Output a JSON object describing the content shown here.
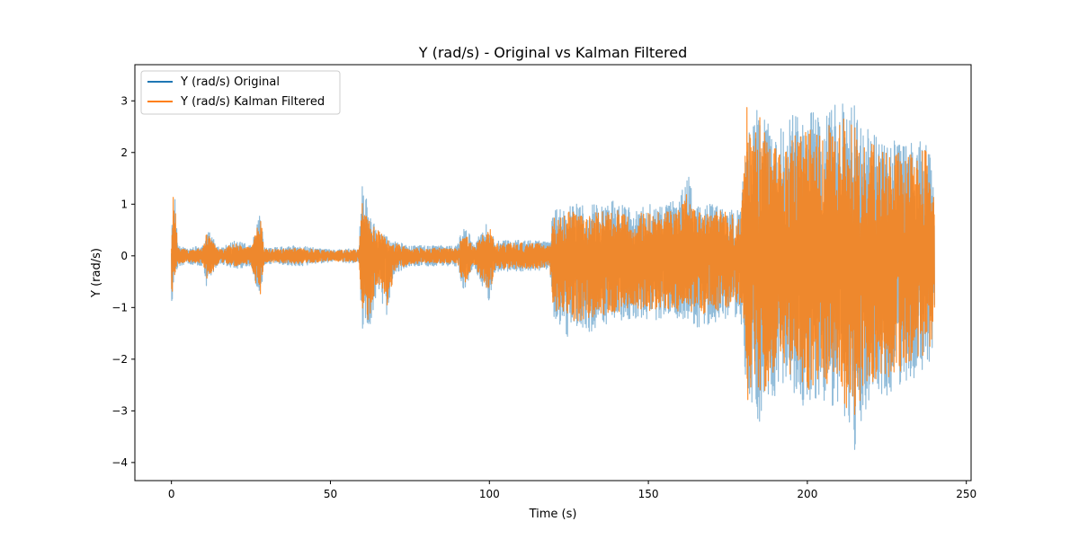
{
  "chart_data": {
    "type": "line",
    "title": "Y (rad/s) - Original vs Kalman Filtered",
    "xlabel": "Time (s)",
    "ylabel": "Y (rad/s)",
    "xlim": [
      -11.5,
      251.5
    ],
    "ylim": [
      -4.35,
      3.7
    ],
    "xticks": [
      0,
      50,
      100,
      150,
      200,
      250
    ],
    "yticks": [
      -4,
      -3,
      -2,
      -1,
      0,
      1,
      2,
      3
    ],
    "xtick_labels": [
      "0",
      "50",
      "100",
      "150",
      "200",
      "250"
    ],
    "ytick_labels": [
      "−4",
      "−3",
      "−2",
      "−1",
      "0",
      "1",
      "2",
      "3"
    ],
    "grid": false,
    "legend_position": "upper-left",
    "series": [
      {
        "name": "Y (rad/s) Original",
        "color": "#1f77b4",
        "alpha": 0.5,
        "x_start": 0,
        "x_end": 240,
        "envelope": {
          "x": [
            0,
            0.5,
            1,
            2,
            5,
            10,
            11,
            15,
            20,
            25,
            28,
            29,
            30,
            40,
            50,
            59,
            60,
            61,
            62,
            65,
            68,
            70,
            75,
            80,
            90,
            92,
            95,
            100,
            102,
            105,
            110,
            115,
            119,
            120,
            125,
            130,
            135,
            140,
            145,
            150,
            155,
            160,
            162,
            165,
            170,
            175,
            179,
            180,
            181,
            183,
            185,
            187,
            190,
            195,
            200,
            205,
            210,
            213,
            215,
            217,
            220,
            225,
            230,
            235,
            238,
            240
          ],
          "upper": [
            0.2,
            1.35,
            1.2,
            0.2,
            0.15,
            0.2,
            0.55,
            0.15,
            0.3,
            0.2,
            0.85,
            0.25,
            0.15,
            0.2,
            0.12,
            0.15,
            2.0,
            1.3,
            0.8,
            0.6,
            0.35,
            0.3,
            0.2,
            0.2,
            0.2,
            0.75,
            0.2,
            0.75,
            0.3,
            0.3,
            0.3,
            0.3,
            0.25,
            0.9,
            1.0,
            1.0,
            1.0,
            1.1,
            0.9,
            1.0,
            1.0,
            1.1,
            1.7,
            1.0,
            1.0,
            1.0,
            0.9,
            2.0,
            2.8,
            2.5,
            3.2,
            2.6,
            2.4,
            2.7,
            2.9,
            2.6,
            3.2,
            2.7,
            3.35,
            2.4,
            2.5,
            2.2,
            2.3,
            2.2,
            2.3,
            1.5
          ],
          "lower": [
            -1.15,
            -0.6,
            -0.5,
            -0.2,
            -0.15,
            -0.2,
            -0.6,
            -0.15,
            -0.25,
            -0.2,
            -1.0,
            -0.25,
            -0.15,
            -0.2,
            -0.12,
            -0.15,
            -1.65,
            -1.2,
            -1.5,
            -0.7,
            -1.2,
            -0.35,
            -0.2,
            -0.2,
            -0.2,
            -0.7,
            -0.2,
            -0.9,
            -0.3,
            -0.3,
            -0.3,
            -0.3,
            -0.25,
            -1.2,
            -1.6,
            -1.5,
            -1.4,
            -1.3,
            -1.2,
            -1.3,
            -1.2,
            -1.3,
            -1.2,
            -1.4,
            -1.3,
            -1.2,
            -1.2,
            -1.9,
            -3.0,
            -2.8,
            -3.35,
            -2.9,
            -2.7,
            -2.6,
            -3.0,
            -2.8,
            -3.0,
            -3.5,
            -4.05,
            -3.2,
            -2.8,
            -2.7,
            -2.5,
            -2.3,
            -2.2,
            -1.7
          ]
        }
      },
      {
        "name": "Y (rad/s) Kalman Filtered",
        "color": "#ff7f0e",
        "alpha": 0.85,
        "x_start": 0,
        "x_end": 240,
        "envelope": {
          "x": [
            0,
            0.5,
            1,
            2,
            5,
            10,
            11,
            15,
            20,
            25,
            28,
            29,
            30,
            40,
            50,
            59,
            60,
            61,
            62,
            65,
            68,
            70,
            75,
            80,
            90,
            92,
            95,
            100,
            102,
            105,
            110,
            115,
            119,
            120,
            125,
            130,
            135,
            140,
            145,
            150,
            155,
            160,
            162,
            165,
            170,
            175,
            179,
            180,
            181,
            183,
            185,
            187,
            190,
            195,
            200,
            205,
            210,
            213,
            215,
            217,
            220,
            225,
            230,
            235,
            238,
            240
          ],
          "upper": [
            0.15,
            1.2,
            1.1,
            0.15,
            0.12,
            0.15,
            0.45,
            0.12,
            0.25,
            0.15,
            0.8,
            0.2,
            0.12,
            0.15,
            0.1,
            0.12,
            1.3,
            1.2,
            0.7,
            0.5,
            0.3,
            0.25,
            0.15,
            0.15,
            0.15,
            0.5,
            0.15,
            0.6,
            0.25,
            0.25,
            0.25,
            0.25,
            0.2,
            0.75,
            0.85,
            0.85,
            0.85,
            0.9,
            0.8,
            0.85,
            0.85,
            0.9,
            1.2,
            0.85,
            0.85,
            0.9,
            0.8,
            1.6,
            2.9,
            2.3,
            2.7,
            2.3,
            2.1,
            2.3,
            2.5,
            2.3,
            2.9,
            2.4,
            2.8,
            2.1,
            2.2,
            2.0,
            2.0,
            2.0,
            2.25,
            1.3
          ],
          "lower": [
            -1.15,
            -0.5,
            -0.4,
            -0.15,
            -0.12,
            -0.15,
            -0.5,
            -0.12,
            -0.2,
            -0.15,
            -0.9,
            -0.2,
            -0.12,
            -0.15,
            -0.1,
            -0.12,
            -1.4,
            -1.1,
            -1.4,
            -0.6,
            -1.1,
            -0.3,
            -0.15,
            -0.15,
            -0.15,
            -0.6,
            -0.15,
            -0.75,
            -0.25,
            -0.25,
            -0.25,
            -0.25,
            -0.2,
            -1.0,
            -1.3,
            -1.25,
            -1.15,
            -1.1,
            -1.0,
            -1.1,
            -1.0,
            -1.1,
            -1.0,
            -1.15,
            -1.1,
            -1.0,
            -1.0,
            -1.6,
            -2.9,
            -2.5,
            -2.8,
            -2.6,
            -2.4,
            -2.3,
            -2.6,
            -2.5,
            -2.6,
            -3.1,
            -3.4,
            -2.8,
            -2.5,
            -2.4,
            -2.2,
            -2.0,
            -1.9,
            -1.5
          ]
        }
      }
    ]
  }
}
